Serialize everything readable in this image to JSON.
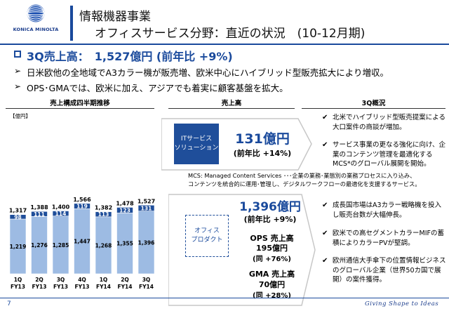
{
  "header": {
    "logo_text": "KONICA MINOLTA",
    "title_line1": "情報機器事業",
    "title_line2": "オフィスサービス分野：直近の状況　(10-12月期)"
  },
  "headline": "3Q売上高：　1,527億円 (前年比 +9%)",
  "bullets": [
    "日米欧他の全地域でA3カラー機が販売増、欧米中心にハイブリッド型販売拡大により増収。",
    "OPS･GMAでは、欧米に加え、アジアでも着実に顧客基盤を拡大。"
  ],
  "bullet_marker": "➢",
  "sections": {
    "chart_title": "売上構成四半期推移",
    "sales_title": "売上高",
    "overview_title": "3Q概況"
  },
  "chart_data": {
    "type": "bar",
    "stacked": true,
    "unit": "【億円】",
    "categories": [
      [
        "1Q",
        "FY13"
      ],
      [
        "2Q",
        "FY13"
      ],
      [
        "3Q",
        "FY13"
      ],
      [
        "4Q",
        "FY13"
      ],
      [
        "1Q",
        "FY14"
      ],
      [
        "2Q",
        "FY14"
      ],
      [
        "3Q",
        "FY14"
      ]
    ],
    "totals": [
      "1,317",
      "1,388",
      "1,400",
      "1,566",
      "1,382",
      "1,478",
      "1,527"
    ],
    "series": [
      {
        "values": [
          1219,
          1276,
          1285,
          1447,
          1268,
          1355,
          1396
        ],
        "color": "#9dbbe3"
      },
      {
        "values": [
          98,
          111,
          114,
          119,
          113,
          123,
          131
        ],
        "color": "#1f4e9a"
      }
    ]
  },
  "it_services": {
    "label_line1": "ITサービス",
    "label_line2": "ソリューション",
    "value": "131億円",
    "yoy": "(前年比 +14%)",
    "note_line1": "MCS: Managed Content Services ･･･企業の業務･業態別の業務プロセスに入り込み、",
    "note_line2": "コンテンツを統合的に運用･管理し、デジタルワークフローの最適化を支援するサービス。"
  },
  "office_products": {
    "label_line1": "オフィス",
    "label_line2": "プロダクト",
    "value": "1,396億円",
    "yoy": "(前年比 +9%)",
    "ops_title": "OPS 売上高",
    "ops_value": "195億円",
    "ops_yoy": "(同 +76%)",
    "gma_title": "GMA 売上高",
    "gma_value": "70億円",
    "gma_yoy": "(同 +28%)"
  },
  "overview": {
    "check": "✔",
    "items": [
      "北米でハイブリッド型販売提案による大口案件の商談が増加。",
      "サービス事業の更なる強化に向け、企業のコンテンツ管理を最適化するMCS*のグローバル展開を開始。",
      "成長国市場はA3カラー戦略機を投入し販売台数が大幅伸長。",
      "欧米での高セグメントカラーMIFの蓄積によりカラーPVが堅調。",
      "欧州通信大手傘下の位置情報ビジネスのグローバル企業（世界50カ国で展開）の案件獲得。"
    ]
  },
  "footer": {
    "page": "7",
    "tagline": "Giving Shape to Ideas"
  }
}
